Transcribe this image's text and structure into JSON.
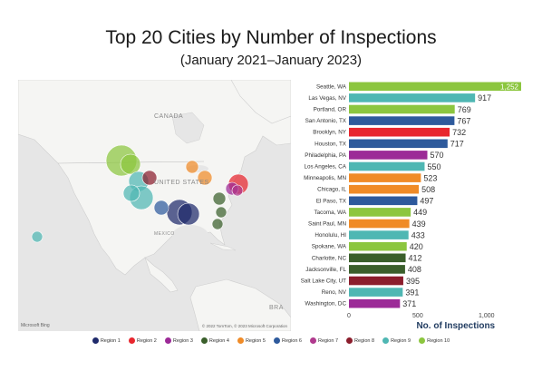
{
  "header": {
    "title": "Top 20 Cities by Number of Inspections",
    "subtitle": "(January 2021–January 2023)"
  },
  "map": {
    "labels": {
      "canada": "CANADA",
      "united_states": "UNITED STATES",
      "mexico": "MEXICO",
      "bra": "BRA"
    },
    "attribution_logo": "Microsoft Bing",
    "copyright": "© 2022 TomTom, © 2023 Microsoft Corporation",
    "circle_regions": [
      "Region 10",
      "Region 10",
      "Region 9",
      "Region 8",
      "Region 9",
      "Region 9",
      "Region 1",
      "Region 1",
      "Region 6",
      "Region 5",
      "Region 5",
      "Region 4",
      "Region 4",
      "Region 4",
      "Region 2",
      "Region 3",
      "Region 7",
      "Region 9"
    ]
  },
  "legend": {
    "items": [
      {
        "label": "Region 1",
        "color": "#1f2a6b"
      },
      {
        "label": "Region 2",
        "color": "#e8262e"
      },
      {
        "label": "Region 3",
        "color": "#9c2a97"
      },
      {
        "label": "Region 4",
        "color": "#3a5f2b"
      },
      {
        "label": "Region 5",
        "color": "#f08b27"
      },
      {
        "label": "Region 6",
        "color": "#2e5a9c"
      },
      {
        "label": "Region 7",
        "color": "#b03a8e"
      },
      {
        "label": "Region 8",
        "color": "#8b1d2c"
      },
      {
        "label": "Region 9",
        "color": "#4fb7b3"
      },
      {
        "label": "Region 10",
        "color": "#8cc63f"
      }
    ]
  },
  "chart_data": {
    "type": "bar",
    "orientation": "horizontal",
    "xlabel": "No. of Inspections",
    "xlim": [
      0,
      1252
    ],
    "xticks": [
      0,
      500,
      1000
    ],
    "xtick_labels": [
      "0",
      "500",
      "1,000"
    ],
    "grid": false,
    "categories": [
      "Seattle, WA",
      "Las Vegas, NV",
      "Portland, OR",
      "San Antonio, TX",
      "Brooklyn, NY",
      "Houston, TX",
      "Philadelphia, PA",
      "Los Angeles, CA",
      "Minneapolis, MN",
      "Chicago, IL",
      "El Paso, TX",
      "Tacoma, WA",
      "Saint Paul, MN",
      "Honolulu, HI",
      "Spokane, WA",
      "Charlotte, NC",
      "Jacksonville, FL",
      "Salt Lake City, UT",
      "Reno, NV",
      "Washington, DC"
    ],
    "values": [
      1252,
      917,
      769,
      767,
      732,
      717,
      570,
      550,
      523,
      508,
      497,
      449,
      439,
      433,
      420,
      412,
      408,
      395,
      391,
      371
    ],
    "value_labels": [
      "1,252",
      "917",
      "769",
      "767",
      "732",
      "717",
      "570",
      "550",
      "523",
      "508",
      "497",
      "449",
      "439",
      "433",
      "420",
      "412",
      "408",
      "395",
      "391",
      "371"
    ],
    "colors": [
      "#8cc63f",
      "#4fb7b3",
      "#8cc63f",
      "#2e5a9c",
      "#e8262e",
      "#2e5a9c",
      "#9c2a97",
      "#4fb7b3",
      "#f08b27",
      "#f08b27",
      "#2e5a9c",
      "#8cc63f",
      "#f08b27",
      "#4fb7b3",
      "#8cc63f",
      "#3a5f2b",
      "#3a5f2b",
      "#8b1d2c",
      "#4fb7b3",
      "#9c2a97"
    ]
  }
}
